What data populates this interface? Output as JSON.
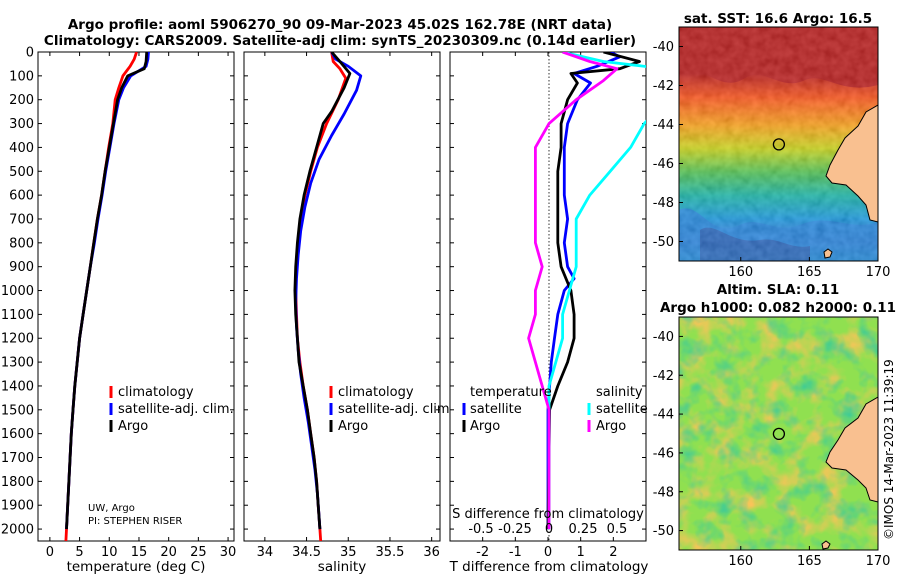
{
  "header": {
    "title1": "Argo profile: aoml 5906270_90 09-Mar-2023 45.02S 162.78E (NRT data)",
    "title2": "Climatology: CARS2009. Satellite-adj clim: synTS_20230309.nc (0.14d earlier)"
  },
  "credit": {
    "line1": "UW, Argo",
    "line2": "PI: STEPHEN RISER"
  },
  "watermark": "©IMOS 14-Mar-2023 11:39:19",
  "colors": {
    "climatology": "#ff0000",
    "satellite": "#0000ff",
    "argo": "#000000",
    "sal_sat": "#00ffff",
    "sal_argo": "#ff00ff"
  },
  "chart_data": [
    {
      "type": "line",
      "name": "temperature",
      "xlabel": "temperature (deg C)",
      "ylabel": "",
      "xlim": [
        -2,
        31
      ],
      "ylim": [
        2050,
        0
      ],
      "xticks": [
        "0",
        "5",
        "10",
        "15",
        "20",
        "25",
        "30"
      ],
      "yticks": [
        "0",
        "100",
        "200",
        "300",
        "400",
        "500",
        "600",
        "700",
        "800",
        "900",
        "1000",
        "1100",
        "1200",
        "1300",
        "1400",
        "1500",
        "1600",
        "1700",
        "1800",
        "1900",
        "2000"
      ],
      "legend": [
        "climatology",
        "satellite-adj. clim.",
        "Argo"
      ],
      "series": [
        {
          "name": "climatology",
          "color": "#ff0000",
          "points": [
            [
              14.6,
              0
            ],
            [
              14.2,
              30
            ],
            [
              13.5,
              60
            ],
            [
              12.3,
              100
            ],
            [
              11.6,
              150
            ],
            [
              11.0,
              200
            ],
            [
              10.6,
              300
            ],
            [
              9.9,
              400
            ],
            [
              9.3,
              500
            ],
            [
              8.7,
              600
            ],
            [
              8.0,
              700
            ],
            [
              7.4,
              800
            ],
            [
              6.8,
              900
            ],
            [
              6.2,
              1000
            ],
            [
              5.6,
              1100
            ],
            [
              5.0,
              1200
            ],
            [
              4.6,
              1300
            ],
            [
              4.2,
              1400
            ],
            [
              3.9,
              1500
            ],
            [
              3.6,
              1600
            ],
            [
              3.4,
              1700
            ],
            [
              3.2,
              1800
            ],
            [
              3.0,
              1900
            ],
            [
              2.8,
              2000
            ],
            [
              2.7,
              2050
            ]
          ]
        },
        {
          "name": "satellite-adj. clim.",
          "color": "#0000ff",
          "points": [
            [
              16.6,
              0
            ],
            [
              16.5,
              30
            ],
            [
              16.2,
              60
            ],
            [
              13.6,
              100
            ],
            [
              12.4,
              150
            ],
            [
              11.6,
              200
            ],
            [
              10.8,
              300
            ],
            [
              10.1,
              400
            ],
            [
              9.4,
              500
            ],
            [
              8.8,
              600
            ],
            [
              8.1,
              700
            ],
            [
              7.5,
              800
            ],
            [
              6.8,
              900
            ],
            [
              6.2,
              1000
            ],
            [
              5.6,
              1100
            ],
            [
              5.0,
              1200
            ],
            [
              4.6,
              1300
            ],
            [
              4.2,
              1400
            ],
            [
              3.9,
              1500
            ],
            [
              3.6,
              1600
            ],
            [
              3.4,
              1700
            ],
            [
              3.2,
              1800
            ],
            [
              3.0,
              1900
            ],
            [
              2.8,
              2000
            ]
          ]
        },
        {
          "name": "Argo",
          "color": "#000000",
          "points": [
            [
              16.3,
              0
            ],
            [
              16.2,
              40
            ],
            [
              15.9,
              70
            ],
            [
              13.1,
              100
            ],
            [
              12.1,
              150
            ],
            [
              11.4,
              200
            ],
            [
              10.7,
              300
            ],
            [
              10.0,
              400
            ],
            [
              9.3,
              500
            ],
            [
              8.7,
              600
            ],
            [
              8.0,
              700
            ],
            [
              7.4,
              800
            ],
            [
              6.8,
              900
            ],
            [
              6.2,
              1000
            ],
            [
              5.6,
              1100
            ],
            [
              5.0,
              1200
            ],
            [
              4.6,
              1300
            ],
            [
              4.2,
              1400
            ],
            [
              3.9,
              1500
            ],
            [
              3.6,
              1600
            ],
            [
              3.4,
              1700
            ],
            [
              3.2,
              1800
            ],
            [
              3.0,
              1900
            ],
            [
              2.8,
              2000
            ]
          ]
        }
      ]
    },
    {
      "type": "line",
      "name": "salinity",
      "xlabel": "salinity",
      "xlim": [
        33.75,
        36.1
      ],
      "ylim": [
        2050,
        0
      ],
      "xticks": [
        "34",
        "34.5",
        "35",
        "35.5",
        "36"
      ],
      "legend": [
        "climatology",
        "satellite-adj. clim.",
        "Argo"
      ],
      "series": [
        {
          "name": "climatology",
          "color": "#ff0000",
          "points": [
            [
              34.8,
              0
            ],
            [
              34.82,
              40
            ],
            [
              34.9,
              70
            ],
            [
              34.97,
              110
            ],
            [
              34.88,
              200
            ],
            [
              34.74,
              300
            ],
            [
              34.63,
              400
            ],
            [
              34.55,
              500
            ],
            [
              34.48,
              600
            ],
            [
              34.43,
              700
            ],
            [
              34.4,
              800
            ],
            [
              34.38,
              900
            ],
            [
              34.37,
              1000
            ],
            [
              34.38,
              1100
            ],
            [
              34.39,
              1200
            ],
            [
              34.42,
              1300
            ],
            [
              34.46,
              1400
            ],
            [
              34.51,
              1500
            ],
            [
              34.55,
              1600
            ],
            [
              34.59,
              1700
            ],
            [
              34.62,
              1800
            ],
            [
              34.64,
              1900
            ],
            [
              34.66,
              2000
            ],
            [
              34.67,
              2050
            ]
          ]
        },
        {
          "name": "satellite-adj. clim.",
          "color": "#0000ff",
          "points": [
            [
              34.8,
              0
            ],
            [
              34.85,
              30
            ],
            [
              35.0,
              60
            ],
            [
              35.15,
              100
            ],
            [
              35.1,
              160
            ],
            [
              34.95,
              260
            ],
            [
              34.8,
              350
            ],
            [
              34.65,
              450
            ],
            [
              34.55,
              550
            ],
            [
              34.48,
              650
            ],
            [
              34.43,
              750
            ],
            [
              34.4,
              850
            ],
            [
              34.38,
              950
            ],
            [
              34.37,
              1050
            ],
            [
              34.38,
              1150
            ],
            [
              34.4,
              1250
            ],
            [
              34.43,
              1350
            ],
            [
              34.47,
              1450
            ],
            [
              34.52,
              1550
            ],
            [
              34.56,
              1650
            ],
            [
              34.6,
              1750
            ],
            [
              34.63,
              1850
            ],
            [
              34.65,
              1950
            ],
            [
              34.66,
              2000
            ]
          ]
        },
        {
          "name": "Argo",
          "color": "#000000",
          "points": [
            [
              34.8,
              0
            ],
            [
              34.9,
              40
            ],
            [
              35.02,
              90
            ],
            [
              34.95,
              150
            ],
            [
              34.8,
              250
            ],
            [
              34.7,
              300
            ],
            [
              34.62,
              400
            ],
            [
              34.54,
              500
            ],
            [
              34.47,
              600
            ],
            [
              34.42,
              700
            ],
            [
              34.39,
              800
            ],
            [
              34.37,
              900
            ],
            [
              34.36,
              1000
            ],
            [
              34.37,
              1100
            ],
            [
              34.39,
              1200
            ],
            [
              34.41,
              1300
            ],
            [
              34.46,
              1400
            ],
            [
              34.51,
              1500
            ],
            [
              34.55,
              1600
            ],
            [
              34.59,
              1700
            ],
            [
              34.62,
              1800
            ],
            [
              34.64,
              1900
            ],
            [
              34.66,
              2000
            ]
          ]
        }
      ]
    },
    {
      "type": "line",
      "name": "difference",
      "xlabel": "T difference from climatology",
      "xlabel_top": "S difference from climatology",
      "xlim": [
        -3,
        3.0
      ],
      "ylim": [
        2050,
        0
      ],
      "xticks": [
        "-2",
        "-1",
        "0",
        "1",
        "2"
      ],
      "xticks_top": [
        "-0.5",
        "-0.25",
        "0",
        "0.25",
        "0.5"
      ],
      "legend_temperature_title": "temperature",
      "legend_salinity_title": "salinity",
      "legend_temperature": [
        "satellite",
        "Argo"
      ],
      "legend_salinity": [
        "satellite",
        "Argo"
      ],
      "series": [
        {
          "name": "T satellite",
          "color": "#0000ff",
          "points": [
            [
              1.9,
              0
            ],
            [
              2.2,
              20
            ],
            [
              1.5,
              60
            ],
            [
              0.8,
              90
            ],
            [
              1.3,
              130
            ],
            [
              0.9,
              200
            ],
            [
              0.6,
              300
            ],
            [
              0.5,
              400
            ],
            [
              0.5,
              600
            ],
            [
              0.6,
              700
            ],
            [
              0.5,
              800
            ],
            [
              0.6,
              900
            ],
            [
              0.8,
              950
            ],
            [
              0.5,
              1000
            ],
            [
              0.3,
              1100
            ],
            [
              0.2,
              1200
            ],
            [
              0.1,
              1300
            ],
            [
              0.05,
              1400
            ],
            [
              0.0,
              1500
            ],
            [
              0.0,
              2000
            ]
          ]
        },
        {
          "name": "T Argo",
          "color": "#000000",
          "points": [
            [
              1.7,
              0
            ],
            [
              2.8,
              40
            ],
            [
              2.2,
              70
            ],
            [
              0.7,
              90
            ],
            [
              0.9,
              130
            ],
            [
              0.6,
              200
            ],
            [
              0.4,
              300
            ],
            [
              0.4,
              400
            ],
            [
              0.3,
              500
            ],
            [
              0.3,
              600
            ],
            [
              0.3,
              700
            ],
            [
              0.3,
              800
            ],
            [
              0.4,
              900
            ],
            [
              0.7,
              1000
            ],
            [
              0.8,
              1100
            ],
            [
              0.8,
              1200
            ],
            [
              0.6,
              1300
            ],
            [
              0.3,
              1400
            ],
            [
              0.05,
              1500
            ],
            [
              0.0,
              2000
            ]
          ]
        },
        {
          "name": "S satellite",
          "color": "#00ffff",
          "points": [
            [
              0.1,
              0
            ],
            [
              0.4,
              40
            ],
            [
              0.85,
              70
            ],
            [
              0.95,
              110
            ],
            [
              0.9,
              180
            ],
            [
              0.7,
              300
            ],
            [
              0.6,
              400
            ],
            [
              0.45,
              500
            ],
            [
              0.3,
              600
            ],
            [
              0.2,
              700
            ],
            [
              0.2,
              800
            ],
            [
              0.2,
              900
            ],
            [
              0.15,
              1000
            ],
            [
              0.1,
              1100
            ],
            [
              0.1,
              1200
            ],
            [
              0.05,
              1300
            ],
            [
              0.0,
              1400
            ],
            [
              0.0,
              2000
            ]
          ]
        },
        {
          "name": "S Argo",
          "color": "#ff00ff",
          "points": [
            [
              0.1,
              0
            ],
            [
              0.3,
              40
            ],
            [
              0.5,
              70
            ],
            [
              0.4,
              120
            ],
            [
              0.2,
              200
            ],
            [
              0.0,
              300
            ],
            [
              -0.1,
              400
            ],
            [
              -0.1,
              500
            ],
            [
              -0.1,
              600
            ],
            [
              -0.1,
              700
            ],
            [
              -0.1,
              800
            ],
            [
              -0.05,
              900
            ],
            [
              -0.1,
              1000
            ],
            [
              -0.1,
              1100
            ],
            [
              -0.15,
              1200
            ],
            [
              -0.1,
              1300
            ],
            [
              -0.05,
              1400
            ],
            [
              0.0,
              1500
            ],
            [
              0.0,
              2000
            ]
          ]
        }
      ]
    },
    {
      "type": "heatmap",
      "name": "sst-map",
      "title": "sat. SST: 16.6 Argo: 16.5",
      "xlim": [
        155.5,
        170
      ],
      "ylim": [
        -51,
        -39
      ],
      "xticks": [
        "160",
        "165",
        "170"
      ],
      "yticks": [
        "-40",
        "-42",
        "-44",
        "-46",
        "-48",
        "-50"
      ],
      "marker": {
        "lon": 162.78,
        "lat": -45.02
      }
    },
    {
      "type": "heatmap",
      "name": "sla-map",
      "title1": "Altim. SLA: 0.11",
      "title2": "Argo h1000: 0.082 h2000: 0.11",
      "xlim": [
        155.5,
        170
      ],
      "ylim": [
        -51,
        -39
      ],
      "xticks": [
        "160",
        "165",
        "170"
      ],
      "yticks": [
        "-40",
        "-42",
        "-44",
        "-46",
        "-48",
        "-50"
      ],
      "marker": {
        "lon": 162.78,
        "lat": -45.02
      }
    }
  ]
}
